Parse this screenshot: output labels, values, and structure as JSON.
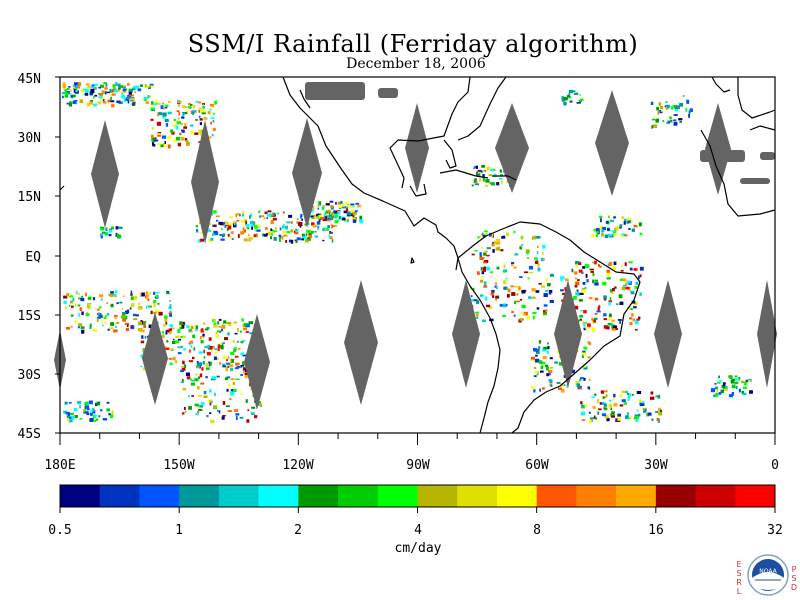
{
  "title": "SSM/I Rainfall (Ferriday algorithm)",
  "date": "December 18, 2006",
  "map": {
    "lat_labels": [
      "45N",
      "30N",
      "15N",
      "EQ",
      "15S",
      "30S",
      "45S"
    ],
    "lon_labels": [
      "180E",
      "150W",
      "120W",
      "90W",
      "60W",
      "30W",
      "0"
    ],
    "swath_gap_color": "#646464",
    "land_outline_color": "#000000"
  },
  "colorbar": {
    "unit_label": "cm/day",
    "tick_labels": [
      "0.5",
      "1",
      "2",
      "4",
      "8",
      "16",
      "32"
    ],
    "colors": [
      "#00007f",
      "#0033bf",
      "#0055ff",
      "#009999",
      "#00cccc",
      "#00ffff",
      "#009900",
      "#00cc00",
      "#00ff00",
      "#b5b500",
      "#e0e000",
      "#ffff00",
      "#ff5500",
      "#ff8000",
      "#ffaa00",
      "#990000",
      "#cc0000",
      "#ff0000"
    ]
  },
  "logo": {
    "left_letters": [
      "E",
      "S",
      "R",
      "L"
    ],
    "right_letters": [
      "P",
      "S",
      "D"
    ],
    "emblem_text": "NOAA"
  }
}
